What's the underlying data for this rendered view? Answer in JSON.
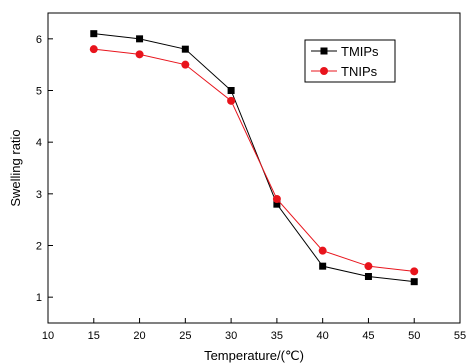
{
  "chart_data": {
    "type": "line",
    "xlabel": "Temperature/(℃)",
    "ylabel": "Swelling ratio",
    "xlim": [
      10,
      55
    ],
    "ylim": [
      0.5,
      6.5
    ],
    "xticks": [
      10,
      15,
      20,
      25,
      30,
      35,
      40,
      45,
      50,
      55
    ],
    "yticks": [
      1,
      2,
      3,
      4,
      5,
      6
    ],
    "x": [
      15,
      20,
      25,
      30,
      35,
      40,
      45,
      50
    ],
    "series": [
      {
        "name": "TMIPs",
        "color": "#000000",
        "marker": "square",
        "values": [
          6.1,
          6.0,
          5.8,
          5.0,
          2.8,
          1.6,
          1.4,
          1.3
        ]
      },
      {
        "name": "TNIPs",
        "color": "#e8141c",
        "marker": "circle",
        "values": [
          5.8,
          5.7,
          5.5,
          4.8,
          2.9,
          1.9,
          1.6,
          1.5
        ]
      }
    ],
    "legend_position": "top-right",
    "grid": false
  }
}
